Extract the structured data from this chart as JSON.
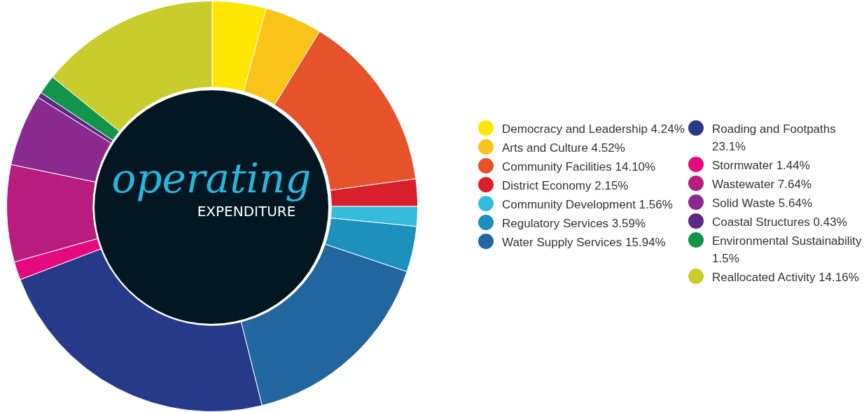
{
  "chart_data": {
    "type": "donut",
    "title": "operating",
    "subtitle": "EXPENDITURE",
    "legend": "right",
    "categories": [
      "Democracy and Leadership",
      "Arts and Culture",
      "Community Facilities",
      "District Economy",
      "Community Development",
      "Regulatory Services",
      "Water Supply Services",
      "Roading and Footpaths",
      "Stormwater",
      "Wastewater",
      "Solid Waste",
      "Coastal Structures",
      "Environmental Sustainability",
      "Reallocated Activity"
    ],
    "values": [
      4.24,
      4.52,
      14.1,
      2.15,
      1.56,
      3.59,
      15.94,
      23.1,
      1.44,
      7.64,
      5.64,
      0.43,
      1.5,
      14.16
    ],
    "value_labels": [
      "4.24%",
      "4.52%",
      "14.10%",
      "2.15%",
      "1.56%",
      "3.59%",
      "15.94%",
      "23.1%",
      "1.44%",
      "7.64%",
      "5.64%",
      "0.43%",
      "1.5%",
      "14.16%"
    ],
    "colors": [
      "#ffe600",
      "#f9c31a",
      "#e6522a",
      "#d91f2b",
      "#35bcdc",
      "#1e90bd",
      "#2266a0",
      "#273a8a",
      "#e5097f",
      "#b71c7e",
      "#8b2a8e",
      "#5a2a82",
      "#12944a",
      "#c8cc2d"
    ]
  }
}
